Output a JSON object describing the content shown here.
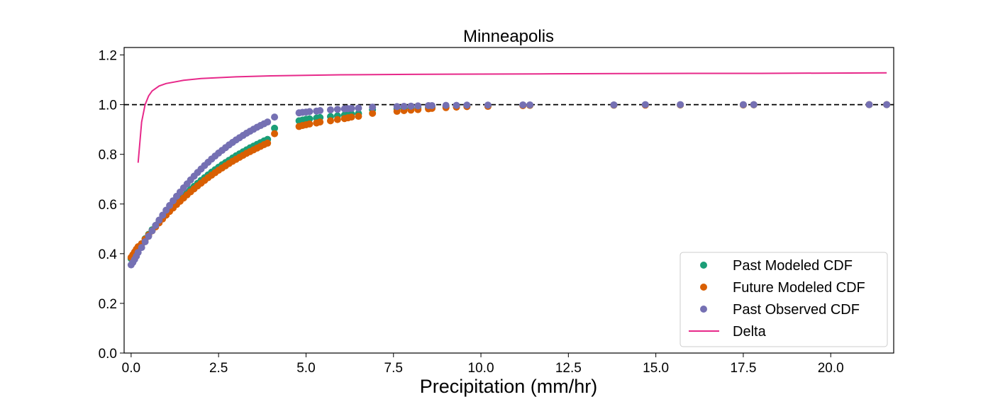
{
  "chart_data": {
    "type": "scatter",
    "title": "Minneapolis",
    "xlabel": "Precipitation (mm/hr)",
    "ylabel": "",
    "xlim": [
      -0.2,
      21.8
    ],
    "ylim": [
      0.0,
      1.23
    ],
    "xticks": [
      0.0,
      2.5,
      5.0,
      7.5,
      10.0,
      12.5,
      15.0,
      17.5,
      20.0
    ],
    "xtick_labels": [
      "0.0",
      "2.5",
      "5.0",
      "7.5",
      "10.0",
      "12.5",
      "15.0",
      "17.5",
      "20.0"
    ],
    "yticks": [
      0.0,
      0.2,
      0.4,
      0.6,
      0.8,
      1.0,
      1.2
    ],
    "ytick_labels": [
      "0.0",
      "0.2",
      "0.4",
      "0.6",
      "0.8",
      "1.0",
      "1.2"
    ],
    "grid": false,
    "legend_position": "lower-right",
    "reference_line": {
      "y": 1.0,
      "style": "dashed",
      "color": "#000000"
    },
    "series": [
      {
        "name": "Past Modeled CDF",
        "kind": "scatter",
        "color": "#1b9e77",
        "points": [
          [
            0.0,
            0.38
          ],
          [
            0.05,
            0.392
          ],
          [
            0.1,
            0.404
          ],
          [
            0.15,
            0.416
          ],
          [
            0.2,
            0.427
          ],
          [
            0.3,
            0.44
          ],
          [
            0.4,
            0.46
          ],
          [
            0.5,
            0.478
          ],
          [
            0.6,
            0.496
          ],
          [
            0.7,
            0.513
          ],
          [
            0.8,
            0.53
          ],
          [
            0.9,
            0.546
          ],
          [
            1.0,
            0.562
          ],
          [
            1.1,
            0.577
          ],
          [
            1.2,
            0.592
          ],
          [
            1.3,
            0.606
          ],
          [
            1.4,
            0.62
          ],
          [
            1.5,
            0.633
          ],
          [
            1.6,
            0.646
          ],
          [
            1.7,
            0.659
          ],
          [
            1.8,
            0.671
          ],
          [
            1.9,
            0.683
          ],
          [
            2.0,
            0.695
          ],
          [
            2.1,
            0.706
          ],
          [
            2.2,
            0.717
          ],
          [
            2.3,
            0.728
          ],
          [
            2.4,
            0.738
          ],
          [
            2.5,
            0.748
          ],
          [
            2.6,
            0.758
          ],
          [
            2.7,
            0.767
          ],
          [
            2.8,
            0.776
          ],
          [
            2.9,
            0.785
          ],
          [
            3.0,
            0.794
          ],
          [
            3.1,
            0.802
          ],
          [
            3.2,
            0.81
          ],
          [
            3.3,
            0.818
          ],
          [
            3.4,
            0.826
          ],
          [
            3.5,
            0.833
          ],
          [
            3.6,
            0.84
          ],
          [
            3.7,
            0.847
          ],
          [
            3.8,
            0.854
          ],
          [
            3.9,
            0.86
          ],
          [
            4.1,
            0.905
          ],
          [
            4.8,
            0.935
          ],
          [
            4.9,
            0.938
          ],
          [
            5.0,
            0.941
          ],
          [
            5.1,
            0.943
          ],
          [
            5.3,
            0.946
          ],
          [
            5.4,
            0.948
          ],
          [
            5.7,
            0.952
          ],
          [
            5.9,
            0.955
          ],
          [
            6.1,
            0.958
          ],
          [
            6.2,
            0.96
          ],
          [
            6.3,
            0.962
          ],
          [
            6.5,
            0.964
          ],
          [
            6.9,
            0.98
          ],
          [
            7.6,
            0.983
          ],
          [
            7.8,
            0.985
          ],
          [
            8.0,
            0.986
          ],
          [
            8.2,
            0.987
          ],
          [
            8.5,
            0.988
          ],
          [
            8.6,
            0.989
          ],
          [
            9.0,
            0.992
          ],
          [
            9.3,
            0.993
          ],
          [
            9.6,
            0.994
          ],
          [
            10.2,
            0.995
          ],
          [
            11.2,
            0.997
          ],
          [
            11.4,
            0.997
          ],
          [
            13.8,
            0.998
          ],
          [
            14.7,
            0.999
          ],
          [
            15.7,
            0.999
          ],
          [
            17.5,
            0.999
          ],
          [
            17.8,
            0.9995
          ],
          [
            21.1,
            1.0
          ],
          [
            21.6,
            1.0
          ]
        ]
      },
      {
        "name": "Future Modeled CDF",
        "kind": "scatter",
        "color": "#d95f02",
        "points": [
          [
            0.0,
            0.385
          ],
          [
            0.05,
            0.396
          ],
          [
            0.1,
            0.407
          ],
          [
            0.15,
            0.418
          ],
          [
            0.2,
            0.428
          ],
          [
            0.3,
            0.44
          ],
          [
            0.4,
            0.458
          ],
          [
            0.5,
            0.475
          ],
          [
            0.6,
            0.492
          ],
          [
            0.7,
            0.508
          ],
          [
            0.8,
            0.524
          ],
          [
            0.9,
            0.54
          ],
          [
            1.0,
            0.555
          ],
          [
            1.1,
            0.57
          ],
          [
            1.2,
            0.584
          ],
          [
            1.3,
            0.598
          ],
          [
            1.4,
            0.611
          ],
          [
            1.5,
            0.624
          ],
          [
            1.6,
            0.637
          ],
          [
            1.7,
            0.649
          ],
          [
            1.8,
            0.661
          ],
          [
            1.9,
            0.673
          ],
          [
            2.0,
            0.684
          ],
          [
            2.1,
            0.695
          ],
          [
            2.2,
            0.706
          ],
          [
            2.3,
            0.716
          ],
          [
            2.4,
            0.726
          ],
          [
            2.5,
            0.736
          ],
          [
            2.6,
            0.745
          ],
          [
            2.7,
            0.754
          ],
          [
            2.8,
            0.763
          ],
          [
            2.9,
            0.772
          ],
          [
            3.0,
            0.78
          ],
          [
            3.1,
            0.788
          ],
          [
            3.2,
            0.796
          ],
          [
            3.3,
            0.804
          ],
          [
            3.4,
            0.811
          ],
          [
            3.5,
            0.818
          ],
          [
            3.6,
            0.825
          ],
          [
            3.7,
            0.832
          ],
          [
            3.8,
            0.839
          ],
          [
            3.9,
            0.845
          ],
          [
            4.1,
            0.883
          ],
          [
            4.8,
            0.912
          ],
          [
            4.9,
            0.916
          ],
          [
            5.0,
            0.919
          ],
          [
            5.1,
            0.922
          ],
          [
            5.3,
            0.926
          ],
          [
            5.4,
            0.93
          ],
          [
            5.7,
            0.935
          ],
          [
            5.9,
            0.94
          ],
          [
            6.1,
            0.944
          ],
          [
            6.2,
            0.947
          ],
          [
            6.3,
            0.95
          ],
          [
            6.5,
            0.953
          ],
          [
            6.9,
            0.965
          ],
          [
            7.6,
            0.973
          ],
          [
            7.8,
            0.976
          ],
          [
            8.0,
            0.978
          ],
          [
            8.2,
            0.98
          ],
          [
            8.5,
            0.983
          ],
          [
            8.6,
            0.985
          ],
          [
            9.0,
            0.988
          ],
          [
            9.3,
            0.99
          ],
          [
            9.6,
            0.992
          ],
          [
            10.2,
            0.993
          ],
          [
            11.2,
            0.996
          ],
          [
            11.4,
            0.997
          ],
          [
            13.8,
            0.998
          ],
          [
            14.7,
            0.998
          ],
          [
            15.7,
            0.999
          ],
          [
            17.5,
            0.999
          ],
          [
            17.8,
            0.9995
          ],
          [
            21.1,
            1.0
          ],
          [
            21.6,
            1.0
          ]
        ]
      },
      {
        "name": "Past Observed CDF",
        "kind": "scatter",
        "color": "#7570b3",
        "points": [
          [
            0.0,
            0.355
          ],
          [
            0.05,
            0.365
          ],
          [
            0.1,
            0.377
          ],
          [
            0.15,
            0.39
          ],
          [
            0.2,
            0.405
          ],
          [
            0.3,
            0.425
          ],
          [
            0.4,
            0.448
          ],
          [
            0.5,
            0.47
          ],
          [
            0.6,
            0.492
          ],
          [
            0.7,
            0.514
          ],
          [
            0.8,
            0.535
          ],
          [
            0.9,
            0.555
          ],
          [
            1.0,
            0.575
          ],
          [
            1.1,
            0.594
          ],
          [
            1.2,
            0.613
          ],
          [
            1.3,
            0.631
          ],
          [
            1.4,
            0.648
          ],
          [
            1.5,
            0.665
          ],
          [
            1.6,
            0.681
          ],
          [
            1.7,
            0.697
          ],
          [
            1.8,
            0.712
          ],
          [
            1.9,
            0.727
          ],
          [
            2.0,
            0.741
          ],
          [
            2.1,
            0.755
          ],
          [
            2.2,
            0.768
          ],
          [
            2.3,
            0.781
          ],
          [
            2.4,
            0.793
          ],
          [
            2.5,
            0.805
          ],
          [
            2.6,
            0.816
          ],
          [
            2.7,
            0.827
          ],
          [
            2.8,
            0.838
          ],
          [
            2.9,
            0.848
          ],
          [
            3.0,
            0.858
          ],
          [
            3.1,
            0.867
          ],
          [
            3.2,
            0.876
          ],
          [
            3.3,
            0.885
          ],
          [
            3.4,
            0.893
          ],
          [
            3.5,
            0.901
          ],
          [
            3.6,
            0.909
          ],
          [
            3.7,
            0.916
          ],
          [
            3.8,
            0.923
          ],
          [
            3.9,
            0.93
          ],
          [
            4.1,
            0.95
          ],
          [
            4.8,
            0.967
          ],
          [
            4.9,
            0.969
          ],
          [
            5.0,
            0.97
          ],
          [
            5.1,
            0.972
          ],
          [
            5.3,
            0.974
          ],
          [
            5.4,
            0.976
          ],
          [
            5.7,
            0.979
          ],
          [
            5.9,
            0.981
          ],
          [
            6.1,
            0.983
          ],
          [
            6.2,
            0.984
          ],
          [
            6.3,
            0.985
          ],
          [
            6.5,
            0.986
          ],
          [
            6.9,
            0.99
          ],
          [
            7.6,
            0.992
          ],
          [
            7.8,
            0.993
          ],
          [
            8.0,
            0.994
          ],
          [
            8.2,
            0.995
          ],
          [
            8.5,
            0.996
          ],
          [
            8.6,
            0.996
          ],
          [
            9.0,
            0.997
          ],
          [
            9.3,
            0.997
          ],
          [
            9.6,
            0.998
          ],
          [
            10.2,
            0.998
          ],
          [
            11.2,
            0.999
          ],
          [
            11.4,
            0.999
          ],
          [
            13.8,
            0.999
          ],
          [
            14.7,
            1.0
          ],
          [
            15.7,
            1.0
          ],
          [
            17.5,
            1.0
          ],
          [
            17.8,
            1.0
          ],
          [
            21.1,
            1.0
          ],
          [
            21.6,
            1.0
          ]
        ]
      },
      {
        "name": "Delta",
        "kind": "line",
        "color": "#e7298a",
        "points": [
          [
            0.2,
            0.766
          ],
          [
            0.3,
            0.93
          ],
          [
            0.4,
            1.0
          ],
          [
            0.5,
            1.035
          ],
          [
            0.6,
            1.055
          ],
          [
            0.8,
            1.075
          ],
          [
            1.0,
            1.085
          ],
          [
            1.5,
            1.098
          ],
          [
            2.0,
            1.105
          ],
          [
            3.0,
            1.112
          ],
          [
            4.0,
            1.116
          ],
          [
            6.0,
            1.12
          ],
          [
            8.0,
            1.122
          ],
          [
            10.0,
            1.123
          ],
          [
            12.0,
            1.124
          ],
          [
            14.0,
            1.125
          ],
          [
            16.0,
            1.126
          ],
          [
            18.0,
            1.126
          ],
          [
            20.0,
            1.127
          ],
          [
            21.6,
            1.128
          ]
        ]
      }
    ]
  }
}
